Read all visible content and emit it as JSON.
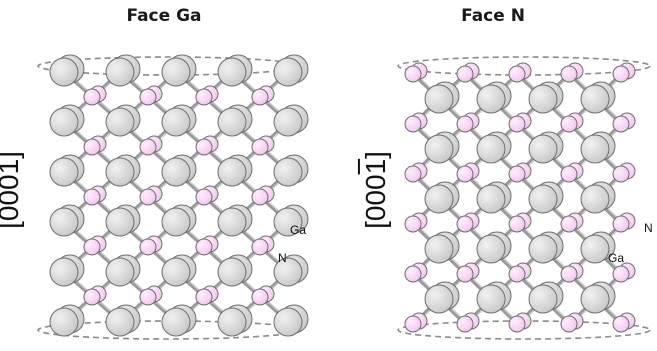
{
  "panels": {
    "ga": {
      "title": "Face Ga",
      "axis": "[0001]",
      "label_ga": "Ga",
      "label_n": "N"
    },
    "n": {
      "title": "Face N",
      "axis_pre": "[000",
      "axis_bar": "1",
      "axis_post": "]",
      "label_ga": "Ga",
      "label_n": "N"
    }
  },
  "colors": {
    "ga_atom": "#c8c8c8",
    "n_atom": "#f3c6ef",
    "bond": "#9a9a9a",
    "ring": "#8a8a8a",
    "outline": "#6e6e6e"
  },
  "icons": {
    "ga": "gray-sphere-ga-atom",
    "n": "pink-sphere-n-atom"
  }
}
